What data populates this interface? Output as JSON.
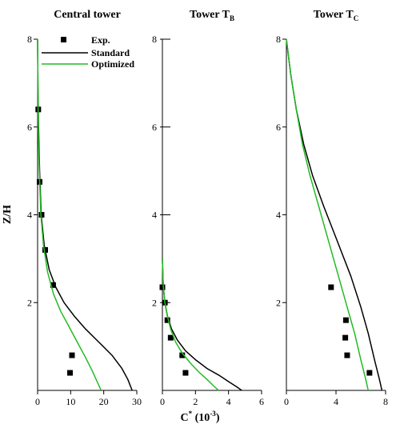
{
  "figure": {
    "ylabel": "Z/H",
    "xlabel_main": "C",
    "xlabel_sup": "*",
    "xlabel_unit": " (10",
    "xlabel_unit_sup": "-3",
    "xlabel_unit_close": ")"
  },
  "legend": {
    "items": [
      {
        "label": "Exp.",
        "kind": "marker",
        "color": "#000000"
      },
      {
        "label": "Standard",
        "kind": "line",
        "color": "#000000"
      },
      {
        "label": "Optimized",
        "kind": "line",
        "color": "#22bb22"
      }
    ]
  },
  "chart_data": [
    {
      "type": "line",
      "title": "Central tower",
      "title_sub": "",
      "xlim": [
        0,
        30
      ],
      "ylim": [
        0,
        8
      ],
      "xticks": [
        0,
        10,
        20,
        30
      ],
      "yticks": [
        2,
        4,
        6,
        8
      ],
      "series": [
        {
          "name": "Exp.",
          "kind": "scatter",
          "color": "#000000",
          "x": [
            0.2,
            0.6,
            1.2,
            2.3,
            4.7,
            10.4,
            9.8
          ],
          "y": [
            6.4,
            4.75,
            4.0,
            3.2,
            2.4,
            0.8,
            0.4
          ]
        },
        {
          "name": "Standard",
          "kind": "line",
          "color": "#000000",
          "x": [
            0,
            0.1,
            0.3,
            0.6,
            1.1,
            2.0,
            3.5,
            5.5,
            8.0,
            11.0,
            14.5,
            18.5,
            22.5,
            25.5,
            27.3,
            28.6
          ],
          "y": [
            8.0,
            7.0,
            6.0,
            5.0,
            4.0,
            3.3,
            2.75,
            2.35,
            2.0,
            1.7,
            1.4,
            1.1,
            0.8,
            0.5,
            0.25,
            0.0
          ]
        },
        {
          "name": "Optimized",
          "kind": "line",
          "color": "#22bb22",
          "x": [
            0,
            0.1,
            0.2,
            0.5,
            1.0,
            1.8,
            3.0,
            4.8,
            7.0,
            9.5,
            12.0,
            14.5,
            16.5,
            18.0,
            19.2
          ],
          "y": [
            8.0,
            7.0,
            6.0,
            5.0,
            4.0,
            3.3,
            2.7,
            2.2,
            1.8,
            1.45,
            1.1,
            0.75,
            0.45,
            0.2,
            0.0
          ]
        }
      ]
    },
    {
      "type": "line",
      "title": "Tower T",
      "title_sub": "B",
      "xlim": [
        0,
        6
      ],
      "ylim": [
        0,
        8
      ],
      "xticks": [
        0,
        2,
        4,
        6
      ],
      "yticks": [
        2,
        4,
        6,
        8
      ],
      "series": [
        {
          "name": "Exp.",
          "kind": "scatter",
          "color": "#000000",
          "x": [
            0.0,
            0.15,
            0.3,
            0.5,
            1.2,
            1.4
          ],
          "y": [
            2.35,
            2.0,
            1.6,
            1.2,
            0.8,
            0.4
          ]
        },
        {
          "name": "Standard",
          "kind": "line",
          "color": "#000000",
          "x": [
            0.0,
            0.05,
            0.15,
            0.3,
            0.55,
            0.9,
            1.4,
            2.0,
            2.7,
            3.4,
            4.0,
            4.5,
            4.8
          ],
          "y": [
            3.0,
            2.4,
            2.0,
            1.7,
            1.4,
            1.15,
            0.9,
            0.7,
            0.5,
            0.35,
            0.2,
            0.08,
            0.0
          ]
        },
        {
          "name": "Optimized",
          "kind": "line",
          "color": "#22bb22",
          "x": [
            0.0,
            0.05,
            0.15,
            0.3,
            0.5,
            0.8,
            1.2,
            1.7,
            2.2,
            2.7,
            3.1,
            3.4
          ],
          "y": [
            3.0,
            2.4,
            2.0,
            1.7,
            1.4,
            1.1,
            0.85,
            0.62,
            0.42,
            0.25,
            0.1,
            0.0
          ]
        }
      ]
    },
    {
      "type": "line",
      "title": "Tower T",
      "title_sub": "C",
      "xlim": [
        0,
        8
      ],
      "ylim": [
        0,
        8
      ],
      "xticks": [
        0,
        4,
        8
      ],
      "yticks": [
        2,
        4,
        6,
        8
      ],
      "series": [
        {
          "name": "Exp.",
          "kind": "scatter",
          "color": "#000000",
          "x": [
            3.6,
            4.8,
            4.75,
            4.9,
            6.7
          ],
          "y": [
            2.35,
            1.6,
            1.2,
            0.8,
            0.4
          ]
        },
        {
          "name": "Standard",
          "kind": "line",
          "color": "#000000",
          "x": [
            0.0,
            0.35,
            0.8,
            1.4,
            2.1,
            3.0,
            4.1,
            5.2,
            6.0,
            6.6,
            7.1,
            7.5,
            7.7
          ],
          "y": [
            8.0,
            7.2,
            6.4,
            5.6,
            4.9,
            4.2,
            3.4,
            2.6,
            1.9,
            1.3,
            0.7,
            0.25,
            0.0
          ]
        },
        {
          "name": "Optimized",
          "kind": "line",
          "color": "#22bb22",
          "x": [
            0.0,
            0.35,
            0.8,
            1.3,
            1.9,
            2.6,
            3.4,
            4.2,
            4.9,
            5.5,
            6.0,
            6.4,
            6.6
          ],
          "y": [
            8.0,
            7.2,
            6.4,
            5.6,
            4.9,
            4.2,
            3.4,
            2.6,
            1.9,
            1.3,
            0.7,
            0.25,
            0.0
          ]
        }
      ]
    }
  ]
}
